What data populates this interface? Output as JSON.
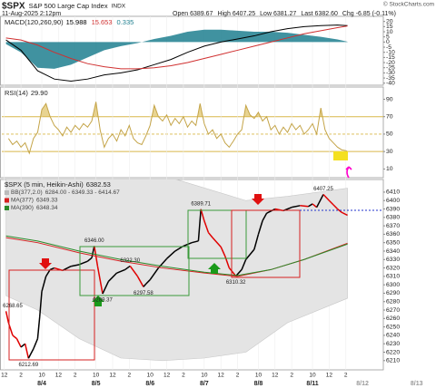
{
  "header": {
    "symbol": "$SPX",
    "name": "S&P 500 Large Cap Index",
    "exchange": "INDX",
    "date": "11-Aug-2025 2:12pm",
    "quote": [
      {
        "label": "Open",
        "value": "6389.67"
      },
      {
        "label": "High",
        "value": "6407.25"
      },
      {
        "label": "Low",
        "value": "6381.27"
      },
      {
        "label": "Last",
        "value": "6382.60"
      },
      {
        "label": "Chg",
        "value": "-6.85 (-0.11%)"
      }
    ],
    "copyright": "© StockCharts.com"
  },
  "chart_data": [
    {
      "type": "line",
      "legend": "inline",
      "xlim": [
        -4.3,
        41.5
      ],
      "ylim": [
        -42,
        25
      ],
      "yticks": [
        20,
        15,
        10,
        5,
        0,
        -5,
        -10,
        -15,
        -20,
        -25,
        -30,
        -35,
        -40
      ],
      "x": [
        -3.8,
        -2,
        0,
        2,
        4,
        6,
        8,
        10,
        12,
        14,
        16,
        18,
        20,
        22,
        24,
        26,
        28,
        30,
        32,
        34,
        36,
        37.2
      ],
      "series": [
        {
          "name": "MACD(120,260,90)",
          "color": "#000000",
          "values": [
            2,
            -8,
            -28,
            -36,
            -38,
            -36,
            -32,
            -30,
            -27,
            -22,
            -17,
            -10,
            -4,
            0,
            3,
            6,
            10,
            13,
            15,
            16,
            16.5,
            15.988
          ]
        },
        {
          "color": "#d03030",
          "values": [
            4,
            2,
            -3,
            -10,
            -16,
            -21,
            -24,
            -26,
            -26,
            -25,
            -23,
            -20,
            -16,
            -12,
            -8,
            -4,
            0,
            4,
            8,
            11,
            14,
            15.653
          ]
        },
        {
          "color": "#1f7f8f",
          "style": "histogram",
          "values": [
            -2,
            -10,
            -25,
            -26,
            -22,
            -15,
            -8,
            -4,
            -1,
            3,
            6,
            10,
            12,
            12,
            11,
            10,
            10,
            9,
            7,
            5,
            2.5,
            0.335
          ]
        }
      ]
    },
    {
      "type": "line",
      "legend": "inline",
      "xlim": [
        -4.3,
        41.5
      ],
      "ylim": [
        0,
        104
      ],
      "yticks": [
        10,
        30,
        50,
        70,
        90
      ],
      "overbought": 70,
      "oversold": 30,
      "midline": 50,
      "level_color": "#d9b84a",
      "x": [
        -3.5,
        -3,
        -2.5,
        -2,
        -1.5,
        -1,
        -0.5,
        0,
        0.5,
        1,
        1.5,
        2,
        2.5,
        3,
        3.5,
        4,
        4.5,
        5,
        5.5,
        6,
        6.5,
        7,
        7.5,
        8,
        8.5,
        9,
        9.5,
        10,
        10.5,
        11,
        11.5,
        12,
        12.5,
        13,
        13.5,
        14,
        14.5,
        15,
        15.5,
        16,
        16.5,
        17,
        17.5,
        18,
        18.5,
        19,
        19.5,
        20,
        20.5,
        21,
        21.5,
        22,
        22.5,
        23,
        23.5,
        24,
        24.5,
        25,
        25.5,
        26,
        26.5,
        27,
        27.5,
        28,
        28.5,
        29,
        29.5,
        30,
        30.5,
        31,
        31.5,
        32,
        32.5,
        33,
        33.5,
        34,
        34.5,
        35,
        35.5,
        36,
        36.5,
        37,
        37.2
      ],
      "series": [
        {
          "name": "RSI(14)",
          "value_label": "29.90",
          "color": "#c4a448",
          "values": [
            45,
            38,
            42,
            35,
            40,
            28,
            45,
            52,
            78,
            85,
            70,
            60,
            55,
            48,
            58,
            52,
            60,
            55,
            62,
            58,
            65,
            87,
            55,
            35,
            45,
            50,
            42,
            55,
            48,
            60,
            45,
            40,
            38,
            48,
            60,
            83,
            70,
            65,
            72,
            60,
            68,
            62,
            70,
            58,
            65,
            60,
            85,
            62,
            50,
            55,
            45,
            50,
            40,
            35,
            42,
            50,
            55,
            83,
            72,
            68,
            75,
            65,
            70,
            55,
            60,
            50,
            58,
            52,
            62,
            55,
            60,
            50,
            55,
            62,
            50,
            80,
            55,
            45,
            40,
            35,
            32,
            31,
            29.9
          ]
        }
      ]
    },
    {
      "type": "line",
      "legend": "rows",
      "xlim": [
        -4.3,
        41.5
      ],
      "ylim": [
        6199,
        6425
      ],
      "yticks": [
        6210,
        6220,
        6230,
        6240,
        6250,
        6260,
        6270,
        6280,
        6290,
        6300,
        6310,
        6320,
        6330,
        6340,
        6350,
        6360,
        6370,
        6380,
        6390,
        6400,
        6410
      ],
      "xticks": [
        {
          "value": -4,
          "label": "12"
        },
        {
          "value": -2,
          "label": "2"
        },
        {
          "value": 0.5,
          "label": "10"
        },
        {
          "value": 2.5,
          "label": "12"
        },
        {
          "value": 4.5,
          "label": "2"
        },
        {
          "value": 7,
          "label": "10"
        },
        {
          "value": 9,
          "label": "12"
        },
        {
          "value": 11,
          "label": "2"
        },
        {
          "value": 13.5,
          "label": "10"
        },
        {
          "value": 15.5,
          "label": "12"
        },
        {
          "value": 17.5,
          "label": "2"
        },
        {
          "value": 20,
          "label": "10"
        },
        {
          "value": 22,
          "label": "12"
        },
        {
          "value": 24,
          "label": "2"
        },
        {
          "value": 26.5,
          "label": "10"
        },
        {
          "value": 28.5,
          "label": "12"
        },
        {
          "value": 30.5,
          "label": "2"
        },
        {
          "value": 33,
          "label": "10"
        },
        {
          "value": 35,
          "label": "12"
        },
        {
          "value": 37,
          "label": "2"
        }
      ],
      "xdates": [
        {
          "value": 0.5,
          "label": "8/4"
        },
        {
          "value": 7,
          "label": "8/5"
        },
        {
          "value": 13.5,
          "label": "8/6"
        },
        {
          "value": 20,
          "label": "8/7"
        },
        {
          "value": 26.5,
          "label": "8/8"
        },
        {
          "value": 33,
          "label": "8/11"
        },
        {
          "value": 39,
          "label": "8/12"
        },
        {
          "value": 45.5,
          "label": "8/13"
        }
      ],
      "series": [
        {
          "name": "$SPX (5 min, Heikin-Ashi)",
          "color": "#000000",
          "down_color": "#e00000",
          "x": [
            -3.8,
            -3.5,
            -3,
            -2.5,
            -2,
            -1.5,
            -1.1,
            -0.5,
            0,
            0.25,
            0.5,
            1,
            1.5,
            2,
            3,
            4,
            5,
            6,
            6.5,
            6.8,
            7.2,
            7.8,
            8.5,
            9.5,
            10.5,
            11.1,
            12,
            12.7,
            13,
            13.5,
            14.5,
            15.5,
            16.5,
            17.5,
            18.5,
            19.3,
            19.6,
            20,
            20.5,
            21,
            22,
            22.5,
            23,
            23.8,
            24.5,
            25,
            26,
            26.5,
            27,
            27.5,
            28.5,
            29.5,
            30.5,
            31.5,
            32.5,
            33,
            33.5,
            34.3,
            35,
            35.5,
            36,
            36.5,
            37.2
          ],
          "values": [
            6268.65,
            6255,
            6240,
            6236,
            6226,
            6230,
            6212.69,
            6224,
            6236,
            6262,
            6292,
            6310,
            6318,
            6320,
            6317,
            6322,
            6324,
            6328,
            6332,
            6346,
            6322,
            6289.37,
            6304,
            6314,
            6318,
            6322.3,
            6310,
            6297.58,
            6301,
            6306,
            6320,
            6331,
            6340,
            6346,
            6350,
            6352,
            6389.71,
            6376,
            6362,
            6356,
            6345,
            6334,
            6320,
            6310.32,
            6318,
            6330,
            6342,
            6360,
            6376,
            6385,
            6390,
            6388,
            6392,
            6394,
            6393,
            6396,
            6392,
            6407.25,
            6400,
            6395,
            6390,
            6386,
            6382.53
          ]
        },
        {
          "name": "BB(377,2.0)",
          "value_label": "6284.00 - 6349.33 - 6414.67",
          "color": "#e4e4e4",
          "x": [
            -3.8,
            0,
            5,
            10,
            15,
            20,
            25,
            30,
            37.2
          ],
          "upper": [
            6425,
            6430,
            6440,
            6443,
            6430,
            6415,
            6400,
            6405,
            6414.67
          ],
          "lower": [
            6287,
            6270,
            6236,
            6213,
            6210,
            6213,
            6220,
            6255,
            6284
          ]
        },
        {
          "name": "MA(377)",
          "color": "#d62020",
          "x": [
            -3.8,
            0,
            5,
            10,
            15,
            20,
            24,
            28,
            32,
            37.2
          ],
          "values": [
            6356,
            6350,
            6338,
            6328,
            6320,
            6314,
            6310,
            6318,
            6330,
            6349.33
          ]
        },
        {
          "name": "MA(390)",
          "color": "#2a8a2a",
          "x": [
            -3.8,
            0,
            5,
            10,
            15,
            20,
            24,
            28,
            32,
            37.2
          ],
          "values": [
            6358,
            6352,
            6340,
            6330,
            6322,
            6315,
            6311,
            6318,
            6330,
            6348.34
          ]
        }
      ],
      "annotations": [
        {
          "x": -3.8,
          "y": 6268.65,
          "label": "6268.65"
        },
        {
          "x": -1.1,
          "y": 6212.69,
          "label": "6212.69"
        },
        {
          "x": 6.8,
          "y": 6346,
          "label": "6346.00"
        },
        {
          "x": 7.8,
          "y": 6289.37,
          "label": "6289.37"
        },
        {
          "x": 11.1,
          "y": 6322.3,
          "label": "6322.30"
        },
        {
          "x": 12.7,
          "y": 6297.58,
          "label": "6297.58"
        },
        {
          "x": 19.6,
          "y": 6389.71,
          "label": "6389.71"
        },
        {
          "x": 23.8,
          "y": 6310.32,
          "label": "6310.32"
        },
        {
          "x": 34.3,
          "y": 6407.25,
          "label": "6407.25"
        }
      ]
    }
  ]
}
